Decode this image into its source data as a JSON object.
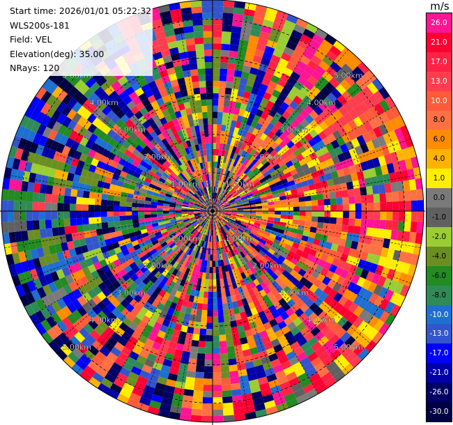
{
  "header": {
    "start_time": "Start time: 2026/01/01 05:22:32",
    "site": "WLS200s-181",
    "field": "Field: VEL",
    "elevation": "Elevation(deg): 35.00",
    "nrays": "NRays: 120"
  },
  "colorbar": {
    "unit": "m/s",
    "ticks": [
      "26.0",
      "21.0",
      "17.0",
      "13.0",
      "10.0",
      "8.0",
      "6.0",
      "4.0",
      "1.0",
      "0.0",
      "-1.0",
      "-2.0",
      "-4.0",
      "-6.0",
      "-8.0",
      "-10.0",
      "-13.0",
      "-17.0",
      "-21.0",
      "-26.0",
      "-30.0"
    ],
    "colors": [
      "#ff1493",
      "#ff0033",
      "#ff2244",
      "#ff3d4f",
      "#ff5a3a",
      "#ff7043",
      "#ff8c00",
      "#ffb300",
      "#ffee00",
      "#7a7a7a",
      "#606060",
      "#9acd32",
      "#6b8e23",
      "#228b22",
      "#2e8b57",
      "#1e6fd0",
      "#3355cc",
      "#0000ff",
      "#0000aa",
      "#000066",
      "#000044"
    ]
  },
  "chart_data": {
    "type": "heatmap",
    "field": "VEL",
    "units": "m/s",
    "elevation_deg": 35.0,
    "n_rays": 120,
    "range_max_km": 5.5,
    "range_ring_labels": [
      "1.00km",
      "2.00km",
      "3.00km",
      "4.00km",
      "5.00km"
    ],
    "colorbar_range": [
      -30.0,
      26.0
    ]
  }
}
